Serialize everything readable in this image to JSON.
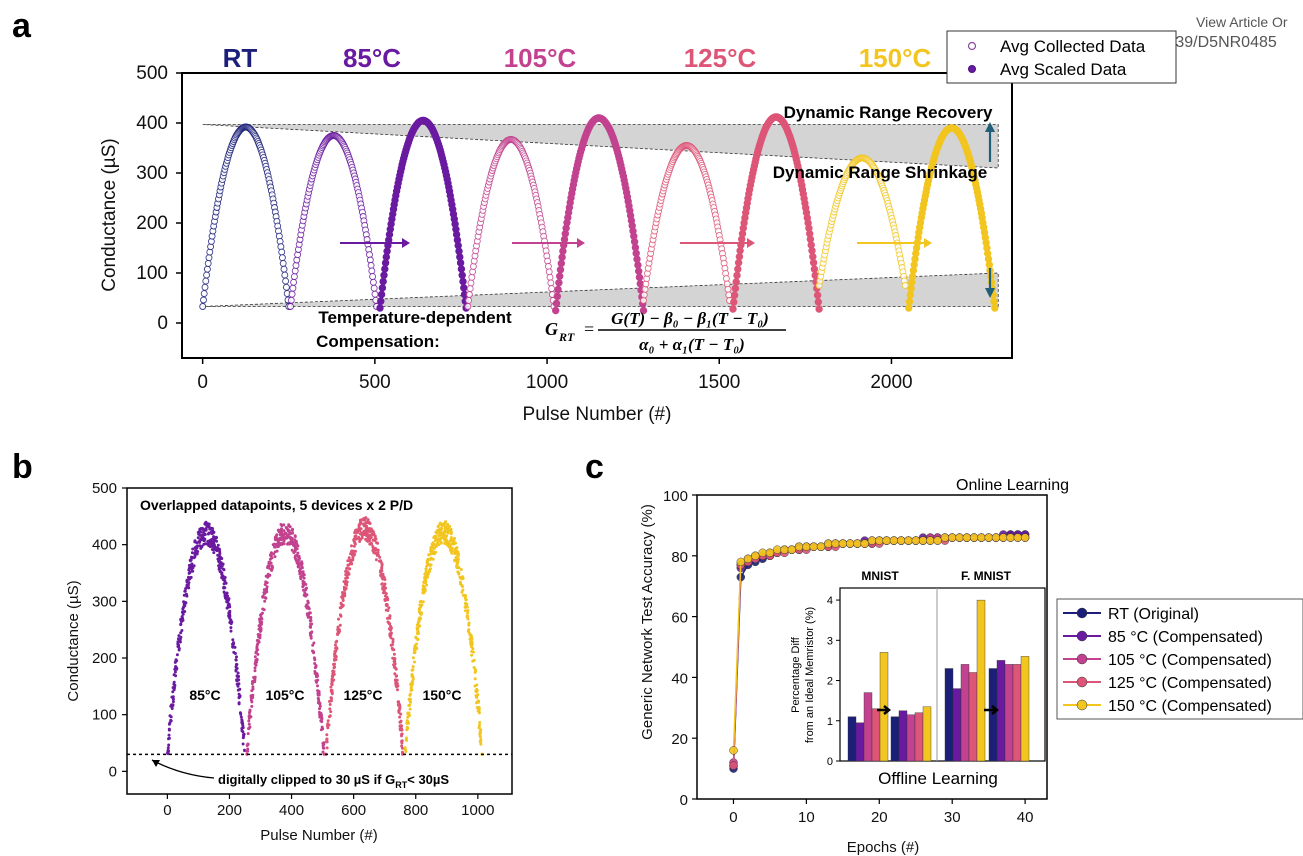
{
  "header": {
    "view_article": "View Article Or",
    "doi_text": "DOI: 10.1039/D5NR0485"
  },
  "panels": {
    "a": "a",
    "b": "b",
    "c": "c"
  },
  "colors": {
    "RT": "#1b1f7a",
    "85": "#6a1aa0",
    "105": "#c2428f",
    "125": "#dd5577",
    "150": "#f2c51f",
    "shade": "#d4d4d4",
    "recovery_arrow": "#1f5f7a"
  },
  "chart_data": [
    {
      "id": "a",
      "type": "scatter",
      "xlabel": "Pulse Number (#)",
      "ylabel": "Conductance (µS)",
      "xlim": [
        -60,
        2350
      ],
      "ylim": [
        -70,
        500
      ],
      "xticks": [
        0,
        500,
        1000,
        1500,
        2000
      ],
      "yticks": [
        0,
        100,
        200,
        300,
        400,
        500
      ],
      "temperature_labels": [
        "RT",
        "85°C",
        "105°C",
        "125°C",
        "150°C"
      ],
      "legend": [
        "Avg Collected Data",
        "Avg Scaled Data"
      ],
      "legend_position": "top-right outside",
      "annotations": {
        "recovery": "Dynamic Range Recovery",
        "shrinkage": "Dynamic Range Shrinkage",
        "compensation_l1": "Temperature-dependent",
        "compensation_l2": "Compensation:",
        "formula_lhs": "G",
        "formula_lhs_sub": "RT",
        "formula_num": "G(T) − β₀ − β₁(T − T₀)",
        "formula_den": "α₀ + α₁(T − T₀)"
      },
      "series": [
        {
          "name": "RT",
          "kind": "collected",
          "start": 0,
          "peak_x": 125,
          "end": 250,
          "min": 33,
          "max": 392
        },
        {
          "name": "85°C",
          "kind": "collected",
          "start": 255,
          "peak_x": 380,
          "end": 505,
          "min": 33,
          "max": 375
        },
        {
          "name": "85°C",
          "kind": "scaled",
          "start": 515,
          "peak_x": 640,
          "end": 765,
          "min": 30,
          "max": 405
        },
        {
          "name": "105°C",
          "kind": "collected",
          "start": 770,
          "peak_x": 895,
          "end": 1020,
          "min": 33,
          "max": 367
        },
        {
          "name": "105°C",
          "kind": "scaled",
          "start": 1025,
          "peak_x": 1150,
          "end": 1280,
          "min": 25,
          "max": 410
        },
        {
          "name": "125°C",
          "kind": "collected",
          "start": 1280,
          "peak_x": 1405,
          "end": 1530,
          "min": 45,
          "max": 355
        },
        {
          "name": "125°C",
          "kind": "scaled",
          "start": 1540,
          "peak_x": 1665,
          "end": 1790,
          "min": 28,
          "max": 412
        },
        {
          "name": "150°C",
          "kind": "collected",
          "start": 1790,
          "peak_x": 1915,
          "end": 2040,
          "min": 75,
          "max": 330
        },
        {
          "name": "150°C",
          "kind": "scaled",
          "start": 2050,
          "peak_x": 2175,
          "end": 2300,
          "min": 30,
          "max": 390
        }
      ],
      "shaded_upper": [
        [
          0,
          397
        ],
        [
          2310,
          397
        ],
        [
          2310,
          310
        ]
      ],
      "shaded_lower": [
        [
          0,
          33
        ],
        [
          2310,
          33
        ],
        [
          2310,
          100
        ]
      ]
    },
    {
      "id": "b",
      "type": "scatter",
      "xlabel": "Pulse Number (#)",
      "ylabel": "Conductance (µS)",
      "xlim": [
        -130,
        1110
      ],
      "ylim": [
        -40,
        500
      ],
      "xticks": [
        0,
        200,
        400,
        600,
        800,
        1000
      ],
      "yticks": [
        0,
        100,
        200,
        300,
        400,
        500
      ],
      "title_inside": "Overlapped datapoints, 5 devices x 2 P/D",
      "clip_note": "digitally clipped to 30 µS if G",
      "clip_note_sub": "RT",
      "clip_note_tail": "< 30µS",
      "clip_level": 30,
      "series": [
        {
          "name": "85°C",
          "start": 0,
          "peak_x": 125,
          "end": 250,
          "max": 420
        },
        {
          "name": "105°C",
          "start": 255,
          "peak_x": 380,
          "end": 505,
          "max": 422
        },
        {
          "name": "125°C",
          "start": 510,
          "peak_x": 635,
          "end": 760,
          "max": 428
        },
        {
          "name": "150°C",
          "start": 765,
          "peak_x": 890,
          "end": 1015,
          "max": 422
        }
      ]
    },
    {
      "id": "c",
      "type": "line",
      "title": "Online Learning",
      "xlabel": "Epochs (#)",
      "ylabel": "Generic Network Test Accuracy (%)",
      "xlim": [
        -5,
        43
      ],
      "ylim": [
        0,
        100
      ],
      "xticks": [
        0,
        10,
        20,
        30,
        40
      ],
      "yticks": [
        0,
        20,
        40,
        60,
        80,
        100
      ],
      "legend_position": "right outside",
      "series": [
        {
          "name": "RT    (Original)",
          "values": [
            10,
            73,
            77,
            78,
            79,
            80,
            81,
            82,
            82,
            82,
            83,
            83,
            83,
            83,
            84,
            84,
            84,
            84,
            84,
            84,
            85,
            85,
            85,
            85,
            85,
            85,
            85,
            85,
            86,
            86,
            86,
            86,
            86,
            86,
            86,
            86,
            86,
            86,
            87,
            87,
            87
          ]
        },
        {
          "name": "85 °C (Compensated)",
          "values": [
            11,
            76,
            78,
            79,
            80,
            80,
            81,
            82,
            82,
            83,
            83,
            83,
            83,
            84,
            84,
            84,
            84,
            84,
            85,
            85,
            85,
            85,
            85,
            85,
            85,
            85,
            86,
            86,
            86,
            86,
            86,
            86,
            86,
            86,
            86,
            86,
            86,
            87,
            87,
            87,
            87
          ]
        },
        {
          "name": "105 °C (Compensated)",
          "values": [
            12,
            77,
            79,
            80,
            80,
            81,
            81,
            82,
            82,
            82,
            83,
            83,
            83,
            83,
            84,
            84,
            84,
            84,
            84,
            85,
            85,
            85,
            85,
            85,
            85,
            85,
            85,
            86,
            86,
            86,
            86,
            86,
            86,
            86,
            86,
            86,
            86,
            86,
            86,
            86,
            86
          ]
        },
        {
          "name": "125 °C (Compensated)",
          "values": [
            11,
            77,
            78,
            79,
            80,
            80,
            81,
            81,
            82,
            82,
            82,
            83,
            83,
            83,
            83,
            84,
            84,
            84,
            84,
            84,
            84,
            85,
            85,
            85,
            85,
            85,
            85,
            85,
            85,
            85,
            86,
            86,
            86,
            86,
            86,
            86,
            86,
            86,
            86,
            86,
            86
          ]
        },
        {
          "name": "150 °C (Compensated)",
          "values": [
            16,
            78,
            79,
            80,
            81,
            81,
            82,
            82,
            82,
            83,
            83,
            83,
            83,
            84,
            84,
            84,
            84,
            84,
            84,
            85,
            85,
            85,
            85,
            85,
            85,
            85,
            85,
            85,
            85,
            86,
            86,
            86,
            86,
            86,
            86,
            86,
            86,
            86,
            86,
            86,
            86
          ]
        }
      ],
      "inset": {
        "type": "bar",
        "ylabel_l1": "Percentage Diff",
        "ylabel_l2": "from an Ideal Memristor (%)",
        "xlabel": "Offline Learning",
        "sections": [
          "MNIST",
          "F. MNIST"
        ],
        "ylim": [
          0,
          4.3
        ],
        "yticks": [
          0,
          1,
          2,
          3,
          4
        ],
        "groups": [
          {
            "section": "MNIST",
            "values": [
              1.1,
              0.95,
              1.7,
              1.3,
              2.7
            ]
          },
          {
            "section": "MNIST",
            "values": [
              1.1,
              1.25,
              1.15,
              1.2,
              1.35
            ]
          },
          {
            "section": "F. MNIST",
            "values": [
              2.3,
              1.8,
              2.4,
              2.2,
              4.0
            ]
          },
          {
            "section": "F. MNIST",
            "values": [
              2.3,
              2.5,
              2.4,
              2.4,
              2.6
            ]
          }
        ]
      }
    }
  ]
}
